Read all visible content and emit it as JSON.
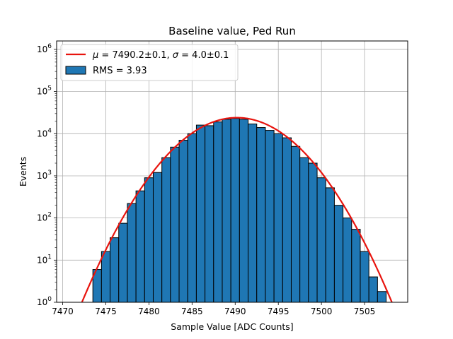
{
  "chart_data": {
    "type": "bar",
    "title": "Baseline value, Ped Run",
    "xlabel": "Sample Value [ADC Counts]",
    "ylabel": "Events",
    "xlim": [
      7469.3,
      7510.0
    ],
    "ylim_log10": [
      0,
      6.2
    ],
    "yscale": "log",
    "grid": true,
    "legend_placement": "top-left",
    "x_ticks": [
      7470,
      7475,
      7480,
      7485,
      7490,
      7495,
      7500,
      7505
    ],
    "y_tick_labels": [
      "10^0",
      "10^1",
      "10^2",
      "10^3",
      "10^4",
      "10^5",
      "10^6"
    ],
    "histogram": {
      "name": "RMS = 3.93",
      "color": "#1f77b4",
      "edge_color": "#000000",
      "bin_width": 1,
      "bin_edges_start": 7473.5,
      "counts": [
        6,
        16,
        34,
        75,
        220,
        440,
        900,
        1200,
        2700,
        4800,
        7000,
        10000,
        16000,
        15500,
        19000,
        22000,
        23000,
        22000,
        17000,
        14000,
        12000,
        10000,
        8000,
        5000,
        2700,
        2000,
        900,
        520,
        200,
        100,
        54,
        16,
        4,
        1.8
      ]
    },
    "fit": {
      "name_mu_symbol": "μ",
      "name_mu_rest": " = 7490.2±0.1, ",
      "name_sigma_symbol": "σ",
      "name_sigma_rest": " = 4.0±0.1",
      "mean": 7490.2,
      "sigma": 4.0,
      "peak": 24000,
      "x_range": [
        7470,
        7510
      ],
      "color": "#e8140e"
    }
  }
}
